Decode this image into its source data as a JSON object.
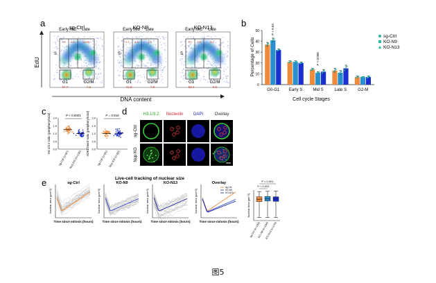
{
  "panel_letters": [
    "a",
    "b",
    "c",
    "d",
    "e"
  ],
  "panel_a": {
    "y_label": "EdU",
    "x_label": "DNA content",
    "plots": [
      {
        "title": "sg-Ctrl",
        "gates": [
          "Early",
          "Mid",
          "Late"
        ],
        "s_label": "S",
        "early_pct": "7.5",
        "mid_pct": "5.4",
        "late_pct": "10.55",
        "g1_label": "G1",
        "g1_pct": "67.7",
        "g2m_label": "G2/M",
        "g2m_pct": "7.6"
      },
      {
        "title": "KO-N9",
        "gates": [
          "Early",
          "Mid",
          "Late"
        ],
        "s_label": "S",
        "early_pct": "5.1",
        "mid_pct": "4.4",
        "late_pct": "4.3",
        "g1_label": "G1",
        "g1_pct": "41.9",
        "g2m_label": "G2/M",
        "g2m_pct": "7.9"
      },
      {
        "title": "KO-N13",
        "gates": [
          "Early",
          "Mid",
          "Late"
        ],
        "s_label": "S",
        "early_pct": "4.2",
        "mid_pct": "2.8",
        "late_pct": "5.2",
        "g1_label": "G1",
        "g1_pct": "53.1",
        "g2m_label": "G2/M",
        "g2m_pct": "6.5"
      }
    ]
  },
  "panel_b": {
    "chart_data": {
      "type": "bar",
      "ylabel": "Percentage of Cells",
      "xlabel": "Cell cycle Stages",
      "ylim": [
        0,
        50
      ],
      "yticks": [
        "0",
        "10",
        "20",
        "30",
        "40",
        "50"
      ],
      "categories": [
        "G0-G1",
        "Early S",
        "Mid S",
        "Late S",
        "G2-M"
      ],
      "series": [
        {
          "name": "sg-Ctrl",
          "values": [
            37,
            21,
            14,
            13,
            7
          ],
          "errors": [
            2,
            1,
            1,
            2,
            1
          ],
          "color": "#f08a3c"
        },
        {
          "name": "KO-N9",
          "values": [
            41,
            21,
            11,
            11,
            7
          ],
          "errors": [
            2,
            1,
            1,
            2,
            0.5
          ],
          "color": "#2a8fcf"
        },
        {
          "name": "KO-N13",
          "values": [
            32,
            20,
            12,
            15,
            7
          ],
          "errors": [
            1,
            1,
            2,
            3,
            1
          ],
          "color": "#1a2fd0"
        }
      ],
      "pvalues": [
        {
          "category": "G0-G1",
          "text": "P < 0.03"
        },
        {
          "category": "Mid S",
          "text": "P < 0.008"
        }
      ],
      "legend_placement": "top-right"
    }
  },
  "panel_c": {
    "left": {
      "ylabel": "H3.1/3.2 ratio (periphery/total)",
      "pvalue": "P < 0.0001",
      "yticks": [
        "0.0",
        "0.5",
        "1.0",
        "1.5",
        "2.0"
      ],
      "groups": [
        "sg-Ctrl (n=87)",
        "Nup KO (n=130)"
      ]
    },
    "right": {
      "ylabel": "H3K27me3 ratio (periphery/total)",
      "pvalue": "P = 0.818",
      "yticks": [
        "0.0",
        "0.5",
        "1.0",
        "1.5",
        "2.0"
      ],
      "groups": [
        "sg-Ctrl (n=61)",
        "Nup KO (n=62)"
      ]
    }
  },
  "panel_d": {
    "columns": [
      "H3.1/3.2",
      "Nucleolin",
      "DAPI",
      "Overlay"
    ],
    "column_colors": [
      "#1aa01a",
      "#d42020",
      "#1a1adf",
      "#222222"
    ],
    "rows": [
      "sg-Ctrl",
      "Nup KO"
    ]
  },
  "panel_e": {
    "title": "Live-cell tracking of nuclear size",
    "plots": [
      {
        "title": "sg-Ctrl",
        "ylabel": "Nuclear area (μm^2)",
        "xlabel": "Time since mitosis (hours)"
      },
      {
        "title": "KO-N9",
        "ylabel": "Nuclear area (μm^2)",
        "xlabel": "Time since mitosis (hours)"
      },
      {
        "title": "KO-N13",
        "ylabel": "Nuclear area (μm^2)",
        "xlabel": "Time since mitosis (hours)"
      },
      {
        "title": "Overlay",
        "ylabel": "Nuclear area (μm^2)",
        "xlabel": "Time since mitosis (hours)"
      }
    ],
    "overlay_legend": [
      "sg-Ctrl",
      "KO-N9",
      "KO-N13"
    ],
    "box": {
      "ylabel": "Nuclear Area (μm^2)",
      "pvalue_top": "P < 0.001",
      "pvalue_second": "P < 0.001",
      "groups": [
        "sg-Ctrl (n=193)",
        "KO-N9 (n=164)",
        "KO-N13 (n=170)"
      ]
    }
  },
  "caption": "图5"
}
